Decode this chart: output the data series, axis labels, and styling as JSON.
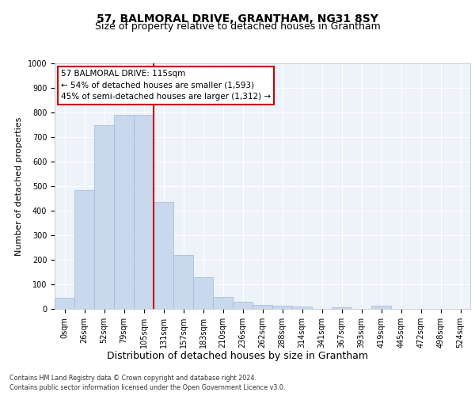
{
  "title": "57, BALMORAL DRIVE, GRANTHAM, NG31 8SY",
  "subtitle": "Size of property relative to detached houses in Grantham",
  "xlabel": "Distribution of detached houses by size in Grantham",
  "ylabel": "Number of detached properties",
  "bar_labels": [
    "0sqm",
    "26sqm",
    "52sqm",
    "79sqm",
    "105sqm",
    "131sqm",
    "157sqm",
    "183sqm",
    "210sqm",
    "236sqm",
    "262sqm",
    "288sqm",
    "314sqm",
    "341sqm",
    "367sqm",
    "393sqm",
    "419sqm",
    "445sqm",
    "472sqm",
    "498sqm",
    "524sqm"
  ],
  "bar_values": [
    45,
    485,
    750,
    790,
    790,
    435,
    220,
    130,
    50,
    30,
    15,
    12,
    10,
    0,
    8,
    0,
    12,
    0,
    0,
    0,
    0
  ],
  "bar_color": "#c9d9ed",
  "bar_edge_color": "#a0b8d8",
  "vline_x_index": 4,
  "vline_color": "#cc0000",
  "annotation_text": "57 BALMORAL DRIVE: 115sqm\n← 54% of detached houses are smaller (1,593)\n45% of semi-detached houses are larger (1,312) →",
  "annotation_box_color": "#ffffff",
  "annotation_box_edge": "#cc0000",
  "ylim": [
    0,
    1000
  ],
  "yticks": [
    0,
    100,
    200,
    300,
    400,
    500,
    600,
    700,
    800,
    900,
    1000
  ],
  "background_color": "#eef2f9",
  "grid_color": "#ffffff",
  "footer_line1": "Contains HM Land Registry data © Crown copyright and database right 2024.",
  "footer_line2": "Contains public sector information licensed under the Open Government Licence v3.0.",
  "title_fontsize": 10,
  "subtitle_fontsize": 9,
  "xlabel_fontsize": 9,
  "ylabel_fontsize": 8,
  "tick_fontsize": 7,
  "annotation_fontsize": 7.5
}
